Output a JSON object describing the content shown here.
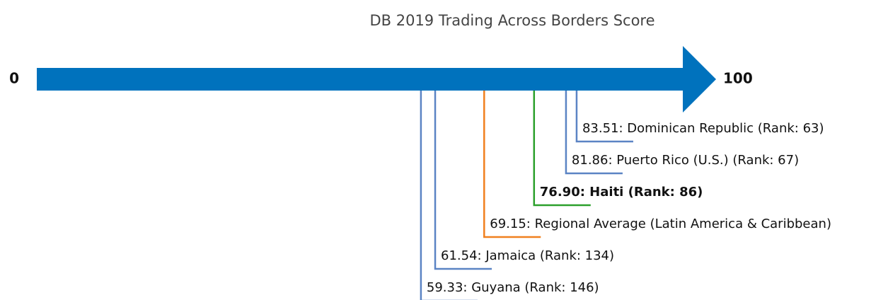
{
  "chart_data": {
    "type": "number-line",
    "title": "DB 2019 Trading Across Borders Score",
    "xlim": [
      0,
      100
    ],
    "xticks": [
      0,
      100
    ],
    "values": [
      83.51,
      81.86,
      76.9,
      69.15,
      61.54,
      59.33
    ],
    "value_labels": [
      "83.51: Dominican Republic (Rank: 63)",
      "81.86: Puerto Rico (U.S.) (Rank: 67)",
      "76.90: Haiti (Rank: 86)",
      "69.15: Regional Average (Latin America & Caribbean)",
      "61.54: Jamaica (Rank: 134)",
      "59.33: Guyana (Rank: 146)"
    ],
    "colors": [
      "#5b84c4",
      "#5b84c4",
      "#2ca02c",
      "#f0801f",
      "#5b84c4",
      "#5b84c4"
    ],
    "highlight": 2,
    "arrow_color": "#0072bd"
  }
}
